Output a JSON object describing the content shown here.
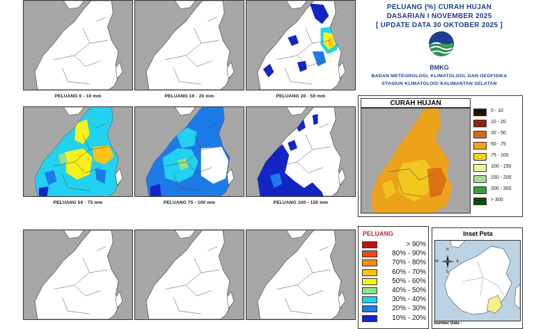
{
  "title": {
    "line1": "PELUANG (%) CURAH HUJAN",
    "line2": "DASARIAN I NOVEMBER 2025",
    "line3": "[ UPDATE DATA 30 OKTOBER 2025 ]"
  },
  "logo_text": "BMKG",
  "institution": {
    "line1": "BADAN METEOROLOGI, KLIMATOLOGI, DAN GEOFISIKA",
    "line2": "STASIUN KLIMATOLOGI KALIMANTAN SELATAN"
  },
  "panels": [
    {
      "caption": "PELUANG 0 - 10 mm",
      "fill_level": "none"
    },
    {
      "caption": "PELUANG 10 - 20 mm",
      "fill_level": "none"
    },
    {
      "caption": "PELUANG 20 - 50 mm",
      "fill_level": "low"
    },
    {
      "caption": "PELUANG 50 - 75 mm",
      "fill_level": "high"
    },
    {
      "caption": "PELUANG 75 - 100 mm",
      "fill_level": "mid"
    },
    {
      "caption": "PELUANG 100 - 150 mm",
      "fill_level": "blue"
    },
    {
      "caption": "",
      "fill_level": "none"
    },
    {
      "caption": "",
      "fill_level": "none"
    },
    {
      "caption": "",
      "fill_level": "none"
    }
  ],
  "curah_hujan": {
    "title": "CURAH HUJAN",
    "legend": [
      {
        "label": "0 - 10",
        "color": "#2a0f06"
      },
      {
        "label": "10 - 20",
        "color": "#8a2a05"
      },
      {
        "label": "20 - 50",
        "color": "#d96b14"
      },
      {
        "label": "50 - 75",
        "color": "#eda21c"
      },
      {
        "label": "75 - 100",
        "color": "#f2d21f"
      },
      {
        "label": "100 - 150",
        "color": "#f1f59b"
      },
      {
        "label": "150 - 200",
        "color": "#a9dd8b"
      },
      {
        "label": "200 - 300",
        "color": "#3e9a3c"
      },
      {
        "label": "> 300",
        "color": "#0b4a12"
      }
    ]
  },
  "peluang": {
    "title": "PELUANG",
    "legend": [
      {
        "label": "> 90%",
        "color": "#c1121b"
      },
      {
        "label": "80% - 90%",
        "color": "#f04a14"
      },
      {
        "label": "70% - 80%",
        "color": "#f78a1c"
      },
      {
        "label": "60% - 70%",
        "color": "#fbc219"
      },
      {
        "label": "50% - 60%",
        "color": "#f8f01a"
      },
      {
        "label": "40% - 50%",
        "color": "#8fe28a"
      },
      {
        "label": "30% - 40%",
        "color": "#22d0f0"
      },
      {
        "label": "20% - 30%",
        "color": "#1d7be8"
      },
      {
        "label": "10% - 20%",
        "color": "#1226c6"
      }
    ]
  },
  "inset": {
    "title": "Inset Peta",
    "compass_n": "N",
    "compass_e": "E",
    "compass_s": "S",
    "compass_w": "W",
    "source_label": "Sumber Data :"
  },
  "colors": {
    "sea": "#a6a6a6",
    "land": "#ffffff",
    "title_blue": "#1a3d8f"
  }
}
